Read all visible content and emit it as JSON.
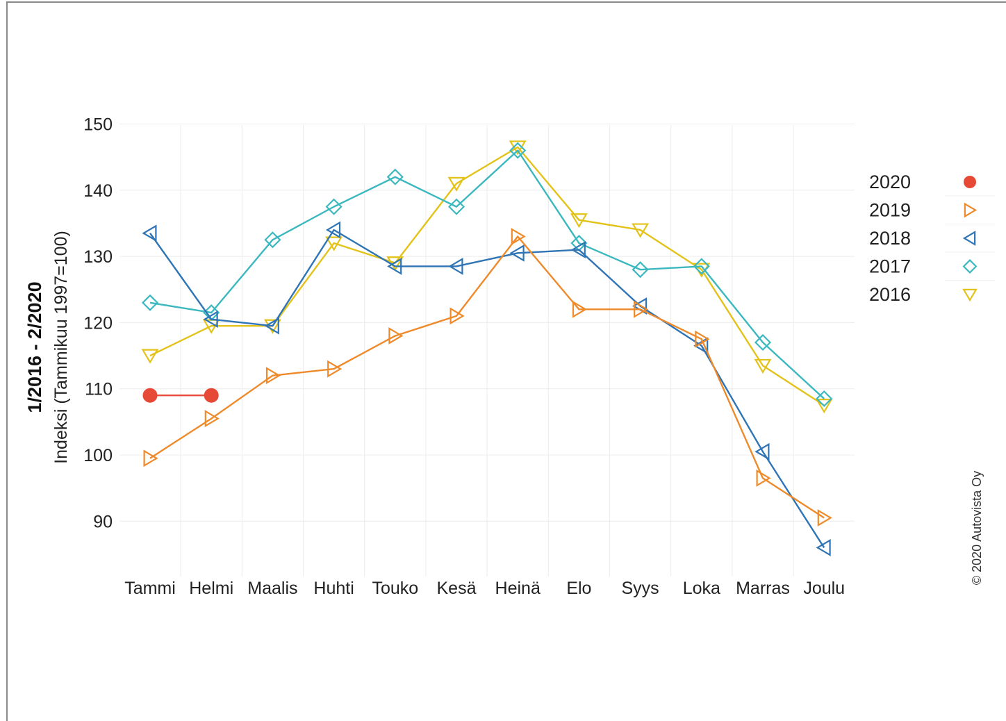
{
  "chart_data": {
    "type": "line",
    "categories": [
      "Tammi",
      "Helmi",
      "Maalis",
      "Huhti",
      "Touko",
      "Kesä",
      "Heinä",
      "Elo",
      "Syys",
      "Loka",
      "Marras",
      "Joulu"
    ],
    "ylabel_main": "1/2016 - 2/2020",
    "ylabel_sub": "Indeksi (Tammikuu 1997=100)",
    "ylim": [
      83,
      150
    ],
    "yticks": [
      90,
      100,
      110,
      120,
      130,
      140,
      150
    ],
    "grid": true,
    "legend_position": "right",
    "credit": "© 2020 Autovista Oy",
    "series": [
      {
        "name": "2016",
        "color": "#e3c21a",
        "marker": "triangle-down",
        "values": [
          115,
          119.5,
          119.5,
          132,
          129,
          141,
          146.5,
          135.5,
          134,
          128,
          113.5,
          107.5
        ]
      },
      {
        "name": "2017",
        "color": "#3bb8bf",
        "marker": "diamond",
        "values": [
          123,
          121.5,
          132.5,
          137.5,
          142,
          137.5,
          146,
          132,
          128,
          128.5,
          117,
          108.5
        ]
      },
      {
        "name": "2018",
        "color": "#2f74b5",
        "marker": "triangle-left",
        "values": [
          133.5,
          120.5,
          119.5,
          134,
          128.5,
          128.5,
          130.5,
          131,
          122.5,
          116.5,
          100.5,
          86
        ]
      },
      {
        "name": "2019",
        "color": "#ef8a2a",
        "marker": "triangle-right",
        "values": [
          99.5,
          105.5,
          112,
          113,
          118,
          121,
          133,
          122,
          122,
          117.5,
          96.5,
          90.5
        ]
      },
      {
        "name": "2020",
        "color": "#e64a36",
        "marker": "circle",
        "values": [
          109,
          109,
          null,
          null,
          null,
          null,
          null,
          null,
          null,
          null,
          null,
          null
        ]
      }
    ]
  }
}
